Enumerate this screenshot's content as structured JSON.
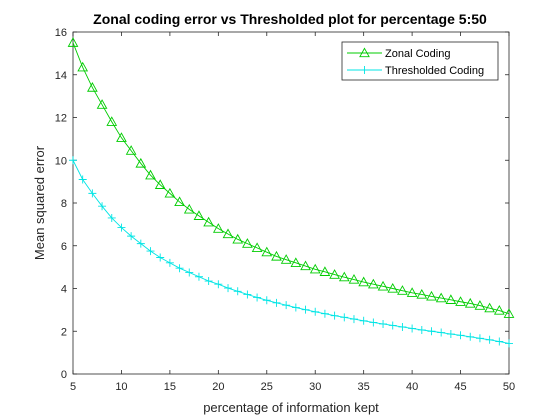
{
  "chart_data": {
    "type": "line",
    "title": "Zonal coding error vs Thresholded plot for percentage 5:50",
    "xlabel": "percentage of information kept",
    "ylabel": "Mean squared error",
    "xlim": [
      5,
      50
    ],
    "ylim": [
      0,
      16
    ],
    "xticks": [
      5,
      10,
      15,
      20,
      25,
      30,
      35,
      40,
      45,
      50
    ],
    "yticks": [
      0,
      2,
      4,
      6,
      8,
      10,
      12,
      14,
      16
    ],
    "grid": false,
    "legend_position": "top-right",
    "x": [
      5,
      6,
      7,
      8,
      9,
      10,
      11,
      12,
      13,
      14,
      15,
      16,
      17,
      18,
      19,
      20,
      21,
      22,
      23,
      24,
      25,
      26,
      27,
      28,
      29,
      30,
      31,
      32,
      33,
      34,
      35,
      36,
      37,
      38,
      39,
      40,
      41,
      42,
      43,
      44,
      45,
      46,
      47,
      48,
      49,
      50
    ],
    "series": [
      {
        "name": "Zonal Coding",
        "color": "#00cc00",
        "marker": "triangle",
        "values": [
          15.5,
          14.35,
          13.4,
          12.6,
          11.8,
          11.05,
          10.45,
          9.85,
          9.3,
          8.85,
          8.45,
          8.05,
          7.7,
          7.4,
          7.1,
          6.8,
          6.55,
          6.3,
          6.1,
          5.9,
          5.7,
          5.5,
          5.35,
          5.2,
          5.05,
          4.9,
          4.78,
          4.65,
          4.53,
          4.42,
          4.3,
          4.2,
          4.1,
          4.0,
          3.9,
          3.8,
          3.72,
          3.63,
          3.55,
          3.47,
          3.38,
          3.3,
          3.2,
          3.08,
          2.97,
          2.82
        ]
      },
      {
        "name": "Thresholded Coding",
        "color": "#00e5e5",
        "marker": "plus",
        "values": [
          10.0,
          9.1,
          8.45,
          7.85,
          7.3,
          6.85,
          6.45,
          6.1,
          5.75,
          5.45,
          5.2,
          4.95,
          4.75,
          4.55,
          4.35,
          4.2,
          4.02,
          3.87,
          3.72,
          3.58,
          3.45,
          3.33,
          3.22,
          3.11,
          3.01,
          2.91,
          2.82,
          2.73,
          2.65,
          2.57,
          2.49,
          2.41,
          2.34,
          2.27,
          2.2,
          2.13,
          2.06,
          2.0,
          1.94,
          1.87,
          1.81,
          1.74,
          1.67,
          1.6,
          1.52,
          1.43
        ]
      }
    ]
  }
}
